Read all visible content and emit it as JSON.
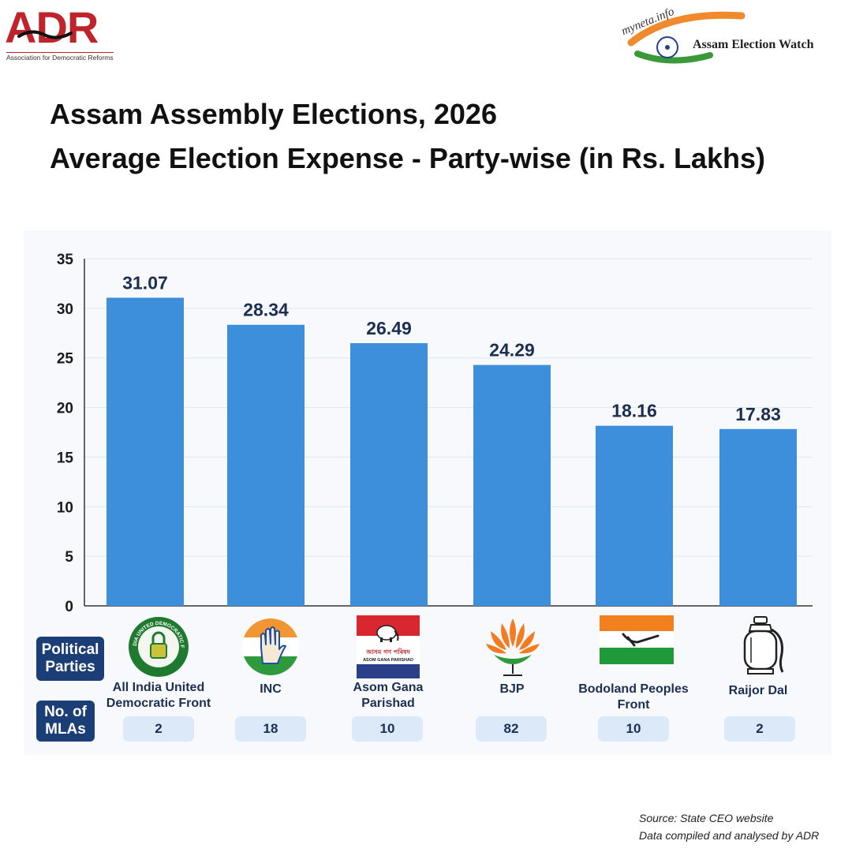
{
  "header": {
    "adr_logo_text": "ADR",
    "adr_logo_subtext": "Association for Democratic Reforms",
    "myneta_logo_text": "myneta.info",
    "election_watch_text": "Assam Election Watch"
  },
  "title": {
    "line1": "Assam Assembly Elections, 2026",
    "line2": "Average Election Expense - Party-wise (in Rs. Lakhs)"
  },
  "side_labels": {
    "political_parties": "Political Parties",
    "no_of_mlas": "No. of MLAs"
  },
  "chart_data": {
    "type": "bar",
    "categories": [
      "All India United Democratic Front",
      "INC",
      "Asom Gana Parishad",
      "BJP",
      "Bodoland Peoples Front",
      "Raijor Dal"
    ],
    "values": [
      31.07,
      28.34,
      26.49,
      24.29,
      18.16,
      17.83
    ],
    "data_labels": [
      "31.07",
      "28.34",
      "26.49",
      "24.29",
      "18.16",
      "17.83"
    ],
    "mlas": [
      "2",
      "18",
      "10",
      "82",
      "10",
      "2"
    ],
    "yticks": [
      "0",
      "5",
      "10",
      "15",
      "20",
      "25",
      "30",
      "35"
    ],
    "ylim": [
      0,
      35
    ],
    "grid": true,
    "bar_color": "#3d8fdc"
  },
  "party_symbols": [
    {
      "icon": "aiudf-lock-emblem-icon",
      "emblem_text": "ALL INDIA UNITED DEMOCRATIC FRONT"
    },
    {
      "icon": "inc-hand-icon"
    },
    {
      "icon": "agp-elephant-flag-icon",
      "emblem_text": "আসম গণ পৰিষদ",
      "emblem_subtext": "ASOM GANA PARISHAD"
    },
    {
      "icon": "bjp-lotus-icon"
    },
    {
      "icon": "bpf-flag-icon"
    },
    {
      "icon": "gas-cylinder-icon"
    }
  ],
  "source": {
    "line1": "Source: State CEO website",
    "line2": "Data compiled and analysed by ADR"
  }
}
